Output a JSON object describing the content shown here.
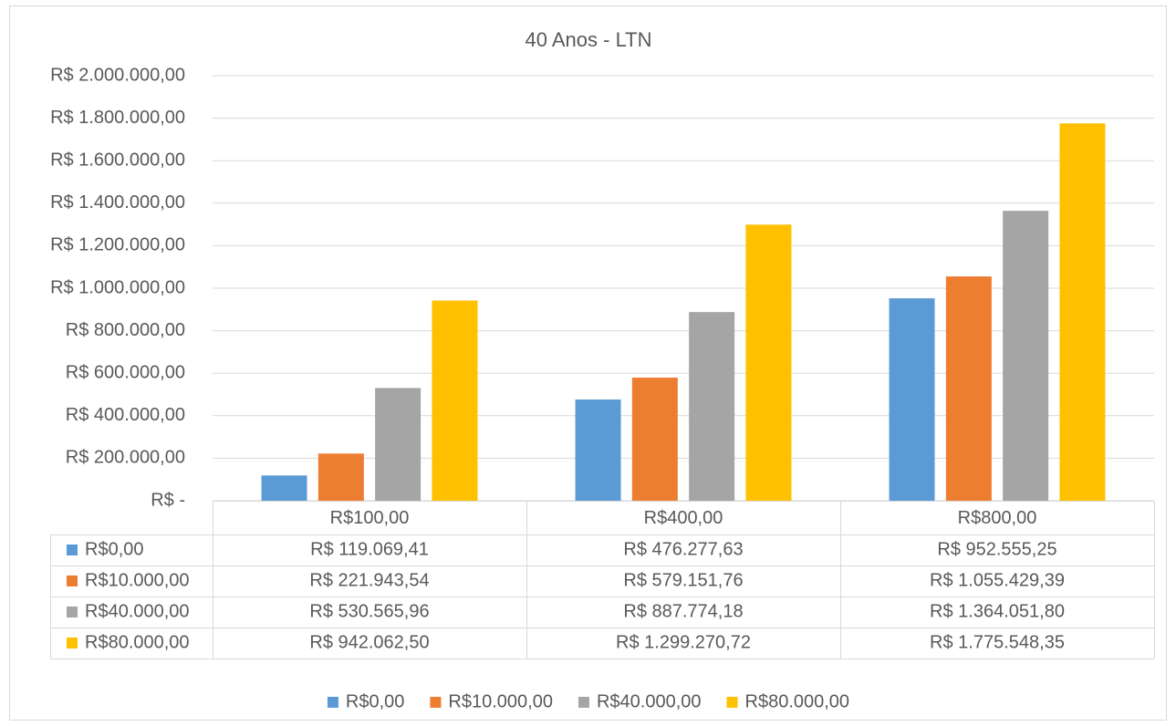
{
  "chart_data": {
    "type": "bar",
    "title": "40 Anos - LTN",
    "categories": [
      "R$100,00",
      "R$400,00",
      "R$800,00"
    ],
    "series": [
      {
        "name": "R$0,00",
        "color": "#5b9bd5",
        "values": [
          119069.41,
          476277.63,
          952555.25
        ],
        "value_labels": [
          "R$ 119.069,41",
          "R$ 476.277,63",
          "R$ 952.555,25"
        ]
      },
      {
        "name": "R$10.000,00",
        "color": "#ed7d31",
        "values": [
          221943.54,
          579151.76,
          1055429.39
        ],
        "value_labels": [
          "R$ 221.943,54",
          "R$ 579.151,76",
          "R$ 1.055.429,39"
        ]
      },
      {
        "name": "R$40.000,00",
        "color": "#a5a5a5",
        "values": [
          530565.96,
          887774.18,
          1364051.8
        ],
        "value_labels": [
          "R$ 530.565,96",
          "R$ 887.774,18",
          "R$ 1.364.051,80"
        ]
      },
      {
        "name": "R$80.000,00",
        "color": "#ffc000",
        "values": [
          942062.5,
          1299270.72,
          1775548.35
        ],
        "value_labels": [
          "R$ 942.062,50",
          "R$ 1.299.270,72",
          "R$ 1.775.548,35"
        ]
      }
    ],
    "ylim": [
      0,
      2000000
    ],
    "yticks": [
      {
        "value": 0,
        "label": "R$ -"
      },
      {
        "value": 200000,
        "label": "R$ 200.000,00"
      },
      {
        "value": 400000,
        "label": "R$ 400.000,00"
      },
      {
        "value": 600000,
        "label": "R$ 600.000,00"
      },
      {
        "value": 800000,
        "label": "R$ 800.000,00"
      },
      {
        "value": 1000000,
        "label": "R$ 1.000.000,00"
      },
      {
        "value": 1200000,
        "label": "R$ 1.200.000,00"
      },
      {
        "value": 1400000,
        "label": "R$ 1.400.000,00"
      },
      {
        "value": 1600000,
        "label": "R$ 1.600.000,00"
      },
      {
        "value": 1800000,
        "label": "R$ 1.800.000,00"
      },
      {
        "value": 2000000,
        "label": "R$ 2.000.000,00"
      }
    ],
    "grid": true,
    "legend": "bottom",
    "data_table": true
  }
}
